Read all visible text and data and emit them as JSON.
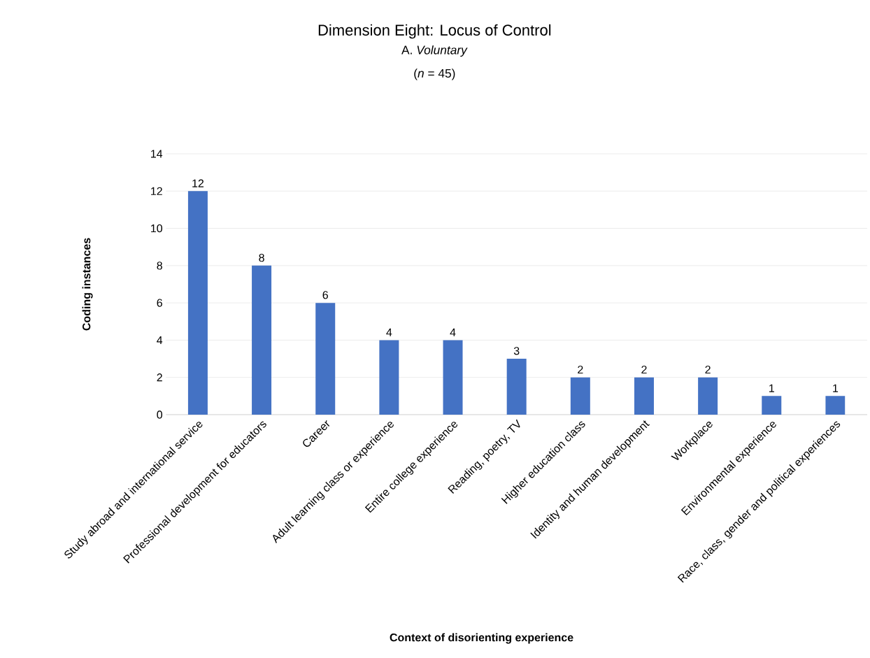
{
  "chart_data": {
    "type": "bar",
    "title": "Dimension Eight: Locus of Control",
    "subtitle": "A. *Voluntary*",
    "annotations": [
      "(*n* = 45)"
    ],
    "xlabel": "Context of disorienting experience",
    "ylabel": "Coding instances",
    "categories": [
      "Study abroad and international service",
      "Professional development for educators",
      "Career",
      "Adult learning class or experience",
      "Entire college experience",
      "Reading, poetry, TV",
      "Higher education class",
      "Identity and human development",
      "Workplace",
      "Environmental experience",
      "Race, class, gender and political experiences"
    ],
    "values": [
      12,
      8,
      6,
      4,
      4,
      3,
      2,
      2,
      2,
      1,
      1
    ],
    "color": "#4472c4",
    "ylim": [
      0,
      14
    ],
    "yticks": [
      0,
      2,
      4,
      6,
      8,
      10,
      12,
      14
    ],
    "grid": "y",
    "data_labels": true
  }
}
